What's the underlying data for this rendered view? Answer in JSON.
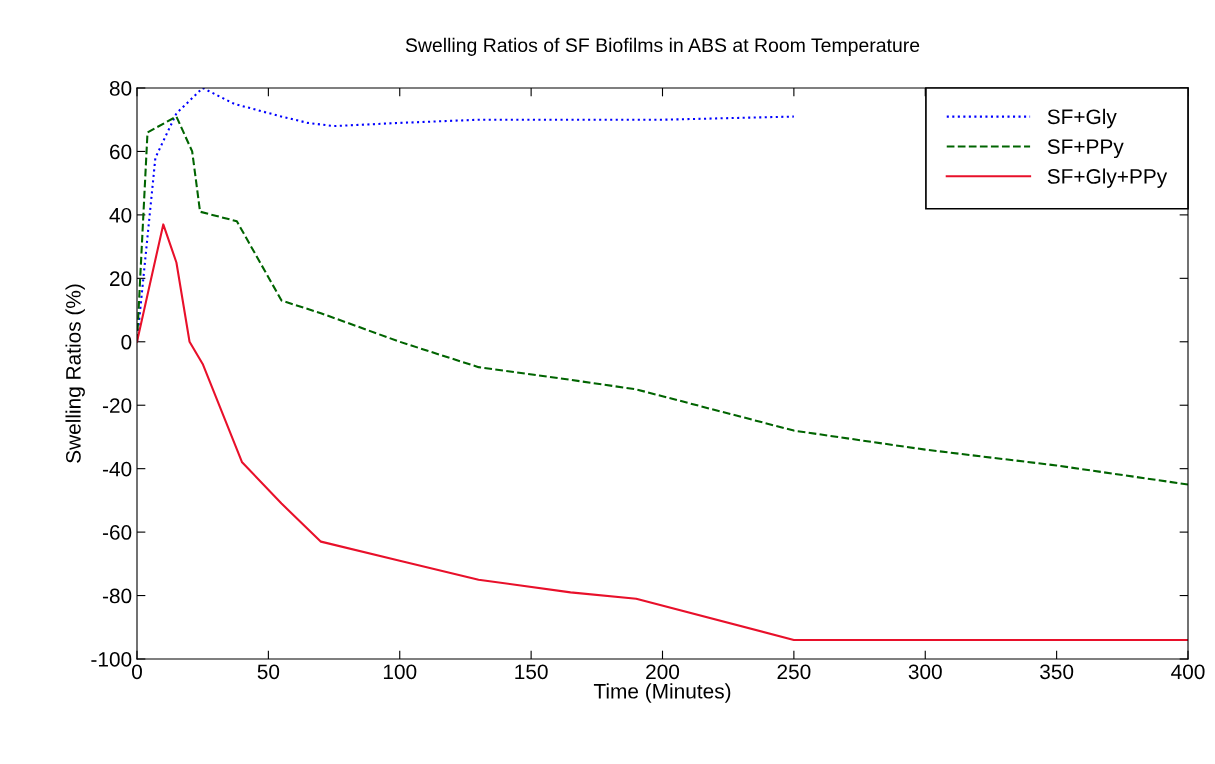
{
  "chart_data": {
    "type": "line",
    "title": "Swelling Ratios of SF Biofilms in ABS at Room Temperature",
    "xlabel": "Time (Minutes)",
    "ylabel": "Swelling Ratios (%)",
    "xlim": [
      0,
      400
    ],
    "xticks": [
      0,
      50,
      100,
      150,
      200,
      250,
      300,
      350,
      400
    ],
    "ylim": [
      -100,
      80
    ],
    "yticks": [
      -100,
      -80,
      -60,
      -40,
      -20,
      0,
      20,
      40,
      60,
      80
    ],
    "grid": false,
    "legend": "top right",
    "series": [
      {
        "name": "SF+Gly",
        "color": "#0000ff",
        "line_style": "dotted",
        "x": [
          0,
          7,
          15,
          25,
          37,
          55,
          65,
          75,
          100,
          130,
          165,
          200,
          250
        ],
        "values": [
          0,
          58,
          72,
          80,
          75,
          71,
          69,
          68,
          69,
          70,
          70,
          70,
          71
        ]
      },
      {
        "name": "SF+PPy",
        "color": "#006400",
        "line_style": "dashed",
        "x": [
          0,
          4,
          15,
          21,
          24,
          38,
          55,
          70,
          100,
          130,
          165,
          190,
          250,
          300,
          350,
          400
        ],
        "values": [
          0,
          66,
          71,
          60,
          41,
          38,
          13,
          9,
          0,
          -8,
          -12,
          -15,
          -28,
          -34,
          -39,
          -45
        ]
      },
      {
        "name": "SF+Gly+PPy",
        "color": "#e8102a",
        "line_style": "solid",
        "x": [
          0,
          10,
          15,
          20,
          25,
          40,
          55,
          70,
          100,
          130,
          165,
          190,
          250,
          400
        ],
        "values": [
          0,
          37,
          25,
          0,
          -7,
          -38,
          -51,
          -63,
          -69,
          -75,
          -79,
          -81,
          -94,
          -94
        ]
      }
    ]
  }
}
